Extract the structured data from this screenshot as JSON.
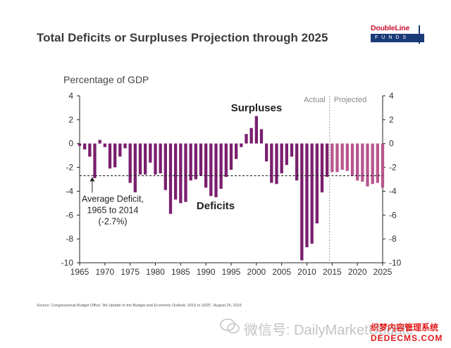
{
  "title": "Total Deficits or Surpluses Projection through 2025",
  "logo": {
    "name": "DoubleLine",
    "sub": "FUNDS"
  },
  "source": "Source: Congressional Budget Office \"An Update to the Budget and Economic Outlook: 2015 to 2025\", August 25, 2015",
  "watermark": "微信号: DailyMarketUpdate",
  "stamp": {
    "line1": "织梦内容管理系统",
    "line2": "DEDECMS.COM"
  },
  "colors": {
    "actual": "#7a1f6f",
    "projected": "#b8568e",
    "axis": "#222222",
    "text": "#333333"
  },
  "chart_data": {
    "type": "bar",
    "title": "Total Deficits or Surpluses Projection through 2025",
    "ylabel": "Percentage of GDP",
    "xlim": [
      1965,
      2025
    ],
    "ylim": [
      -10,
      4
    ],
    "xticks": [
      "1965",
      "1970",
      "1975",
      "1980",
      "1985",
      "1990",
      "1995",
      "2000",
      "2005",
      "2010",
      "2015",
      "2020",
      "2025"
    ],
    "yticks": [
      "4",
      "2",
      "0",
      "-2",
      "-4",
      "-6",
      "-8",
      "-10"
    ],
    "section_labels": {
      "actual": "Actual",
      "projected": "Projected"
    },
    "annotations": {
      "surpluses": "Surpluses",
      "deficits": "Deficits",
      "average": [
        "Average Deficit,",
        "1965 to 2014",
        "(-2.7%)"
      ]
    },
    "average_deficit": -2.7,
    "series": [
      {
        "name": "Actual",
        "x": [
          1965,
          1966,
          1967,
          1968,
          1969,
          1970,
          1971,
          1972,
          1973,
          1974,
          1975,
          1976,
          1977,
          1978,
          1979,
          1980,
          1981,
          1982,
          1983,
          1984,
          1985,
          1986,
          1987,
          1988,
          1989,
          1990,
          1991,
          1992,
          1993,
          1994,
          1995,
          1996,
          1997,
          1998,
          1999,
          2000,
          2001,
          2002,
          2003,
          2004,
          2005,
          2006,
          2007,
          2008,
          2009,
          2010,
          2011,
          2012,
          2013,
          2014
        ],
        "values": [
          -0.2,
          -0.5,
          -1.1,
          -2.9,
          0.3,
          -0.3,
          -2.1,
          -2.0,
          -1.1,
          -0.4,
          -3.3,
          -4.1,
          -2.6,
          -2.6,
          -1.6,
          -2.6,
          -2.5,
          -3.9,
          -5.9,
          -4.7,
          -5.0,
          -4.9,
          -3.1,
          -3.0,
          -2.7,
          -3.7,
          -4.4,
          -4.5,
          -3.8,
          -2.8,
          -2.2,
          -1.3,
          -0.3,
          0.8,
          1.3,
          2.3,
          1.2,
          -1.5,
          -3.3,
          -3.4,
          -2.5,
          -1.8,
          -1.1,
          -3.1,
          -9.8,
          -8.7,
          -8.4,
          -6.7,
          -4.1,
          -2.8
        ]
      },
      {
        "name": "Projected",
        "x": [
          2015,
          2016,
          2017,
          2018,
          2019,
          2020,
          2021,
          2022,
          2023,
          2024,
          2025
        ],
        "values": [
          -2.4,
          -2.4,
          -2.2,
          -2.3,
          -2.7,
          -3.1,
          -3.2,
          -3.6,
          -3.4,
          -3.3,
          -3.7
        ]
      }
    ]
  }
}
